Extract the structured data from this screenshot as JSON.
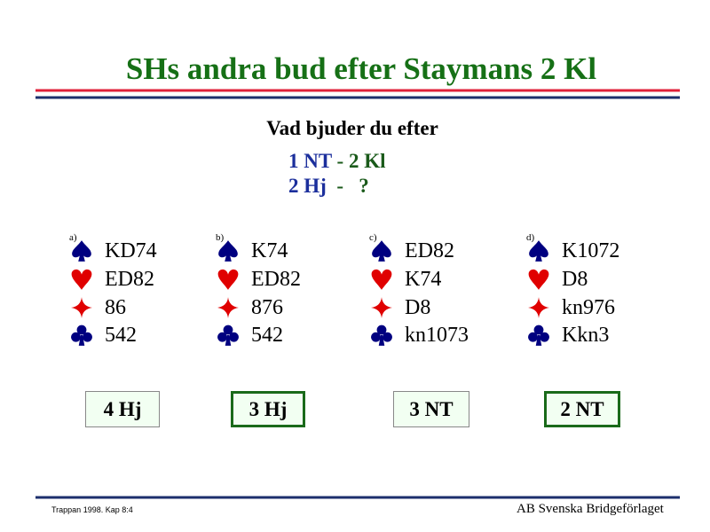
{
  "title": "SHs andra bud efter Staymans 2 Kl",
  "question": "Vad bjuder du efter",
  "bidding": [
    [
      "1 NT",
      "- 2 Kl"
    ],
    [
      "2 Hj",
      " -   ?"
    ]
  ],
  "hands": [
    {
      "label": "a)",
      "spades": "KD74",
      "hearts": "ED82",
      "diamonds": "86",
      "clubs": "542",
      "answer": "4 Hj"
    },
    {
      "label": "b)",
      "spades": "K74",
      "hearts": "ED82",
      "diamonds": "876",
      "clubs": "542",
      "answer": "3 Hj"
    },
    {
      "label": "c)",
      "spades": "ED82",
      "hearts": "K74",
      "diamonds": "D8",
      "clubs": "kn1073",
      "answer": "3 NT"
    },
    {
      "label": "d)",
      "spades": "K1072",
      "hearts": "D8",
      "diamonds": "kn976",
      "clubs": "Kkn3",
      "answer": "2 NT"
    }
  ],
  "footer": {
    "left": "Trappan 1998. Kap 8:4",
    "right": "AB Svenska Bridgeförlaget"
  }
}
